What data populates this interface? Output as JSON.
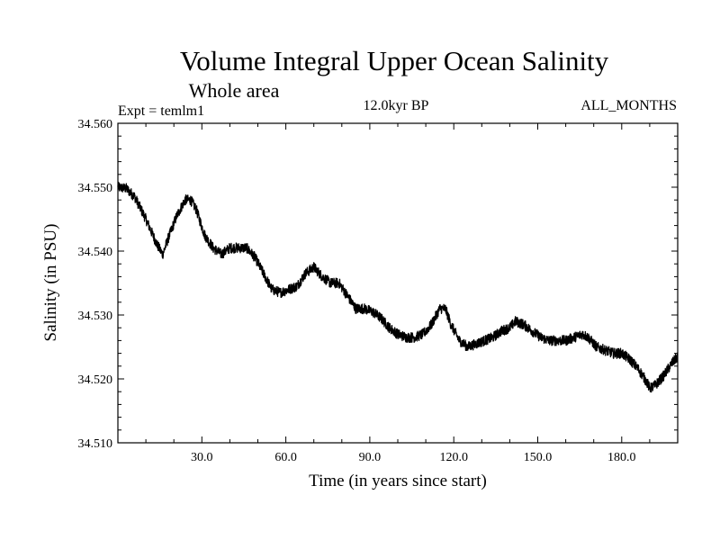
{
  "chart_data": {
    "type": "line",
    "title": "Volume Integral Upper Ocean Salinity",
    "subtitle": "Whole area",
    "experiment_label": "Expt = temlm1",
    "period_label": "12.0kyr BP",
    "season_label": "ALL_MONTHS",
    "xlabel": "Time (in years since start)",
    "ylabel": "Salinity (in PSU)",
    "xlim": [
      0,
      200
    ],
    "ylim": [
      34.51,
      34.56
    ],
    "x_tick_values": [
      30,
      60,
      90,
      120,
      150,
      180
    ],
    "x_tick_labels": [
      "30.0",
      "60.0",
      "90.0",
      "120.0",
      "150.0",
      "180.0"
    ],
    "y_tick_values": [
      34.51,
      34.52,
      34.53,
      34.54,
      34.55,
      34.56
    ],
    "y_tick_labels": [
      "34.510",
      "34.520",
      "34.530",
      "34.540",
      "34.550",
      "34.560"
    ],
    "noise_amplitude": 0.0008,
    "series": [
      {
        "name": "Salinity",
        "color": "#000000",
        "x": [
          0,
          3,
          6,
          10,
          14,
          16,
          18,
          21,
          24,
          26,
          28,
          31,
          34,
          37,
          40,
          43,
          46,
          49,
          52,
          55,
          58,
          61,
          64,
          67,
          70,
          73,
          76,
          79,
          82,
          85,
          88,
          91,
          94,
          97,
          100,
          103,
          106,
          109,
          112,
          115,
          117,
          119,
          122,
          125,
          128,
          131,
          134,
          137,
          140,
          142,
          145,
          148,
          151,
          154,
          157,
          160,
          163,
          166,
          168,
          171,
          174,
          177,
          180,
          183,
          186,
          189,
          190,
          192,
          195,
          198,
          200
        ],
        "y": [
          34.55,
          34.5498,
          34.5485,
          34.545,
          34.541,
          34.5395,
          34.542,
          34.5455,
          34.548,
          34.548,
          34.5465,
          34.5425,
          34.5405,
          34.5395,
          34.5405,
          34.5405,
          34.5405,
          34.539,
          34.5365,
          34.534,
          34.5335,
          34.534,
          34.5345,
          34.5365,
          34.5375,
          34.536,
          34.535,
          34.535,
          34.533,
          34.531,
          34.531,
          34.5305,
          34.5295,
          34.528,
          34.527,
          34.5265,
          34.5265,
          34.527,
          34.5285,
          34.531,
          34.531,
          34.5285,
          34.526,
          34.525,
          34.5255,
          34.526,
          34.5265,
          34.5275,
          34.528,
          34.529,
          34.5285,
          34.5275,
          34.5265,
          34.526,
          34.526,
          34.526,
          34.5265,
          34.527,
          34.5265,
          34.525,
          34.5245,
          34.524,
          34.524,
          34.523,
          34.5215,
          34.5195,
          34.5185,
          34.519,
          34.5205,
          34.5225,
          34.5235
        ]
      }
    ]
  }
}
